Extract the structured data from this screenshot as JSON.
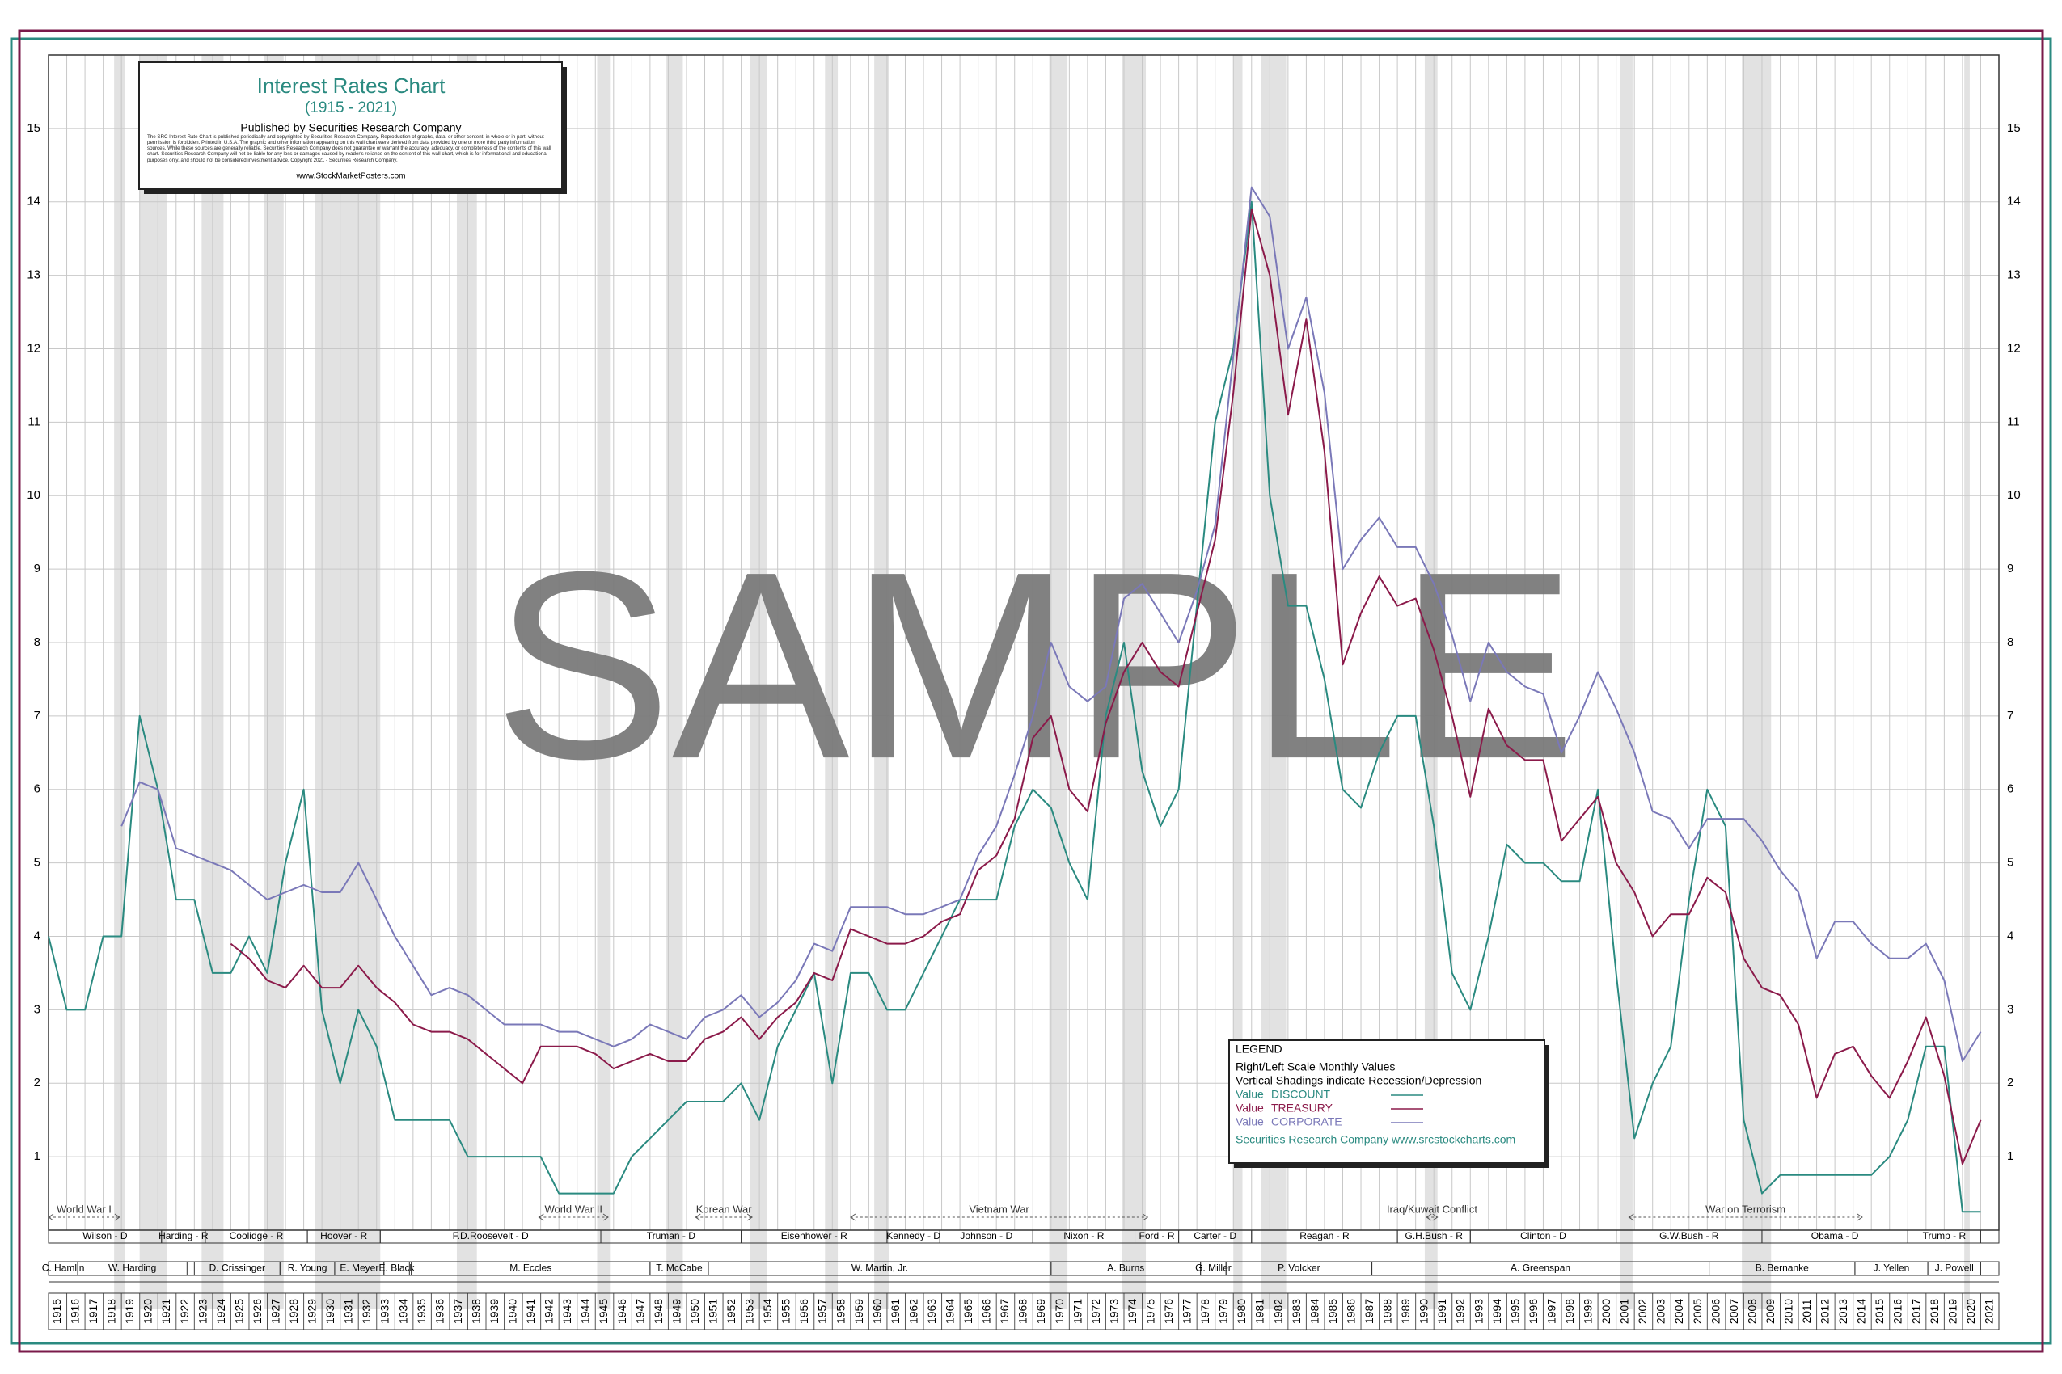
{
  "chart_data": {
    "type": "line",
    "title": "Interest Rates Chart",
    "subtitle": "(1915 - 2021)",
    "publisher": "Published by Securities Research Company",
    "disclaimer": "The SRC Interest Rate Chart is published periodically and copyrighted by Securities Research Company. Reproduction of graphs, data, or other content, in whole or in part, without permission is forbidden. Printed in U.S.A. The graphic and other information appearing on this wall chart were derived from data provided by one or more third party information sources. While these sources are generally reliable, Securities Research Company does not guarantee or warrant the accuracy, adequacy, or completeness of the contents of this wall chart. Securities Research Company will not be liable for any loss or damages caused by reader's reliance on the content of this wall chart, which is for informational and educational purposes only, and should not be considered investment advice. Copyright 2021 - Securities Research Company.",
    "website": "www.StockMarketPosters.com",
    "watermark": "SAMPLE",
    "x": [
      1915,
      1916,
      1917,
      1918,
      1919,
      1920,
      1921,
      1922,
      1923,
      1924,
      1925,
      1926,
      1927,
      1928,
      1929,
      1930,
      1931,
      1932,
      1933,
      1934,
      1935,
      1936,
      1937,
      1938,
      1939,
      1940,
      1941,
      1942,
      1943,
      1944,
      1945,
      1946,
      1947,
      1948,
      1949,
      1950,
      1951,
      1952,
      1953,
      1954,
      1955,
      1956,
      1957,
      1958,
      1959,
      1960,
      1961,
      1962,
      1963,
      1964,
      1965,
      1966,
      1967,
      1968,
      1969,
      1970,
      1971,
      1972,
      1973,
      1974,
      1975,
      1976,
      1977,
      1978,
      1979,
      1980,
      1981,
      1982,
      1983,
      1984,
      1985,
      1986,
      1987,
      1988,
      1989,
      1990,
      1991,
      1992,
      1993,
      1994,
      1995,
      1996,
      1997,
      1998,
      1999,
      2000,
      2001,
      2002,
      2003,
      2004,
      2005,
      2006,
      2007,
      2008,
      2009,
      2010,
      2011,
      2012,
      2013,
      2014,
      2015,
      2016,
      2017,
      2018,
      2019,
      2020,
      2021
    ],
    "xlim": [
      1915,
      2022
    ],
    "ylim": [
      0,
      16
    ],
    "yticks": [
      1,
      2,
      3,
      4,
      5,
      6,
      7,
      8,
      9,
      10,
      11,
      12,
      13,
      14,
      15
    ],
    "grid": true,
    "series": [
      {
        "name": "DISCOUNT",
        "color": "#2a8a80",
        "values": [
          4,
          3,
          3,
          4,
          4,
          7,
          6,
          4.5,
          4.5,
          3.5,
          3.5,
          4,
          3.5,
          5,
          6,
          3,
          2,
          3,
          2.5,
          1.5,
          1.5,
          1.5,
          1.5,
          1,
          1,
          1,
          1,
          1,
          0.5,
          0.5,
          0.5,
          0.5,
          1,
          1.25,
          1.5,
          1.75,
          1.75,
          1.75,
          2,
          1.5,
          2.5,
          3,
          3.5,
          2,
          3.5,
          3.5,
          3,
          3,
          3.5,
          4,
          4.5,
          4.5,
          4.5,
          5.5,
          6,
          5.75,
          5,
          4.5,
          7,
          8,
          6.25,
          5.5,
          6,
          8.5,
          11,
          12,
          14,
          10,
          8.5,
          8.5,
          7.5,
          6,
          5.75,
          6.5,
          7,
          7,
          5.5,
          3.5,
          3,
          4,
          5.25,
          5,
          5,
          4.75,
          4.75,
          6,
          3.5,
          1.25,
          2,
          2.5,
          4.5,
          6,
          5.5,
          1.5,
          0.5,
          0.75,
          0.75,
          0.75,
          0.75,
          0.75,
          0.75,
          1,
          1.5,
          2.5,
          2.5,
          0.25,
          0.25
        ]
      },
      {
        "name": "TREASURY",
        "color": "#8b1a4a",
        "values": [
          null,
          null,
          null,
          null,
          null,
          null,
          null,
          null,
          null,
          null,
          3.9,
          3.7,
          3.4,
          3.3,
          3.6,
          3.3,
          3.3,
          3.6,
          3.3,
          3.1,
          2.8,
          2.7,
          2.7,
          2.6,
          2.4,
          2.2,
          2.0,
          2.5,
          2.5,
          2.5,
          2.4,
          2.2,
          2.3,
          2.4,
          2.3,
          2.3,
          2.6,
          2.7,
          2.9,
          2.6,
          2.9,
          3.1,
          3.5,
          3.4,
          4.1,
          4.0,
          3.9,
          3.9,
          4.0,
          4.2,
          4.3,
          4.9,
          5.1,
          5.6,
          6.7,
          7.0,
          6.0,
          5.7,
          6.9,
          7.6,
          8.0,
          7.6,
          7.4,
          8.4,
          9.4,
          11.4,
          13.9,
          13.0,
          11.1,
          12.4,
          10.6,
          7.7,
          8.4,
          8.9,
          8.5,
          8.6,
          7.9,
          7.0,
          5.9,
          7.1,
          6.6,
          6.4,
          6.4,
          5.3,
          5.6,
          5.9,
          5.0,
          4.6,
          4.0,
          4.3,
          4.3,
          4.8,
          4.6,
          3.7,
          3.3,
          3.2,
          2.8,
          1.8,
          2.4,
          2.5,
          2.1,
          1.8,
          2.3,
          2.9,
          2.1,
          0.9,
          1.5
        ]
      },
      {
        "name": "CORPORATE",
        "color": "#7a78b8",
        "values": [
          null,
          null,
          null,
          null,
          5.5,
          6.1,
          6.0,
          5.2,
          5.1,
          5.0,
          4.9,
          4.7,
          4.5,
          4.6,
          4.7,
          4.6,
          4.6,
          5.0,
          4.5,
          4.0,
          3.6,
          3.2,
          3.3,
          3.2,
          3.0,
          2.8,
          2.8,
          2.8,
          2.7,
          2.7,
          2.6,
          2.5,
          2.6,
          2.8,
          2.7,
          2.6,
          2.9,
          3.0,
          3.2,
          2.9,
          3.1,
          3.4,
          3.9,
          3.8,
          4.4,
          4.4,
          4.4,
          4.3,
          4.3,
          4.4,
          4.5,
          5.1,
          5.5,
          6.2,
          7.0,
          8.0,
          7.4,
          7.2,
          7.4,
          8.6,
          8.8,
          8.4,
          8.0,
          8.7,
          9.6,
          11.9,
          14.2,
          13.8,
          12.0,
          12.7,
          11.4,
          9.0,
          9.4,
          9.7,
          9.3,
          9.3,
          8.8,
          8.1,
          7.2,
          8.0,
          7.6,
          7.4,
          7.3,
          6.5,
          7.0,
          7.6,
          7.1,
          6.5,
          5.7,
          5.6,
          5.2,
          5.6,
          5.6,
          5.6,
          5.3,
          4.9,
          4.6,
          3.7,
          4.2,
          4.2,
          3.9,
          3.7,
          3.7,
          3.9,
          3.4,
          2.3,
          2.7
        ]
      }
    ],
    "recessions": [
      [
        1918.6,
        1919.2
      ],
      [
        1920.0,
        1921.5
      ],
      [
        1923.4,
        1924.6
      ],
      [
        1926.8,
        1927.9
      ],
      [
        1929.6,
        1933.2
      ],
      [
        1937.4,
        1938.5
      ],
      [
        1945.1,
        1945.8
      ],
      [
        1948.9,
        1949.8
      ],
      [
        1953.5,
        1954.4
      ],
      [
        1957.6,
        1958.3
      ],
      [
        1960.3,
        1961.1
      ],
      [
        1969.9,
        1970.9
      ],
      [
        1973.9,
        1975.2
      ],
      [
        1980.0,
        1980.5
      ],
      [
        1981.5,
        1982.9
      ],
      [
        1990.5,
        1991.2
      ],
      [
        2001.2,
        2001.9
      ],
      [
        2007.9,
        2009.5
      ],
      [
        2020.1,
        2020.4
      ]
    ],
    "wars": [
      {
        "name": "World War I",
        "start": 1915,
        "end": 1918.9
      },
      {
        "name": "World War II",
        "start": 1941.9,
        "end": 1945.7
      },
      {
        "name": "Korean War",
        "start": 1950.5,
        "end": 1953.6
      },
      {
        "name": "Vietnam War",
        "start": 1959,
        "end": 1975.3
      },
      {
        "name": "Iraq/Kuwait Conflict",
        "start": 1990.6,
        "end": 1991.2
      },
      {
        "name": "War on Terrorism",
        "start": 2001.7,
        "end": 2014.5
      }
    ],
    "presidents": [
      {
        "name": "Wilson - D",
        "start": 1915,
        "end": 1921.2
      },
      {
        "name": "Harding - R",
        "start": 1921.2,
        "end": 1923.6
      },
      {
        "name": "Coolidge - R",
        "start": 1923.6,
        "end": 1929.2
      },
      {
        "name": "Hoover - R",
        "start": 1929.2,
        "end": 1933.2
      },
      {
        "name": "F.D.Roosevelt - D",
        "start": 1933.2,
        "end": 1945.3
      },
      {
        "name": "Truman - D",
        "start": 1945.3,
        "end": 1953
      },
      {
        "name": "Eisenhower - R",
        "start": 1953,
        "end": 1961
      },
      {
        "name": "Kennedy - D",
        "start": 1961,
        "end": 1963.9
      },
      {
        "name": "Johnson - D",
        "start": 1963.9,
        "end": 1969
      },
      {
        "name": "Nixon - R",
        "start": 1969,
        "end": 1974.6
      },
      {
        "name": "Ford - R",
        "start": 1974.6,
        "end": 1977
      },
      {
        "name": "Carter - D",
        "start": 1977,
        "end": 1981
      },
      {
        "name": "Reagan - R",
        "start": 1981,
        "end": 1989
      },
      {
        "name": "G.H.Bush - R",
        "start": 1989,
        "end": 1993
      },
      {
        "name": "Clinton - D",
        "start": 1993,
        "end": 2001
      },
      {
        "name": "G.W.Bush - R",
        "start": 2001,
        "end": 2009
      },
      {
        "name": "Obama - D",
        "start": 2009,
        "end": 2017
      },
      {
        "name": "Trump - R",
        "start": 2017,
        "end": 2021
      }
    ],
    "fed_chairs": [
      {
        "name": "C. Hamlin",
        "start": 1915,
        "end": 1916.6
      },
      {
        "name": "W. Harding",
        "start": 1916.6,
        "end": 1922.6
      },
      {
        "name": "D. Crissinger",
        "start": 1923,
        "end": 1927.7
      },
      {
        "name": "R. Young",
        "start": 1927.7,
        "end": 1930.7
      },
      {
        "name": "E. Meyer",
        "start": 1930.7,
        "end": 1933.4
      },
      {
        "name": "E. Black",
        "start": 1933.4,
        "end": 1934.8
      },
      {
        "name": "M. Eccles",
        "start": 1934.9,
        "end": 1948
      },
      {
        "name": "T. McCabe",
        "start": 1948,
        "end": 1951.2
      },
      {
        "name": "W. Martin, Jr.",
        "start": 1951.2,
        "end": 1970
      },
      {
        "name": "A. Burns",
        "start": 1970,
        "end": 1978.2
      },
      {
        "name": "G. Miller",
        "start": 1978.2,
        "end": 1979.6
      },
      {
        "name": "P. Volcker",
        "start": 1979.6,
        "end": 1987.6
      },
      {
        "name": "A. Greenspan",
        "start": 1987.6,
        "end": 2006.1
      },
      {
        "name": "B. Bernanke",
        "start": 2006.1,
        "end": 2014.1
      },
      {
        "name": "J. Yellen",
        "start": 2014.1,
        "end": 2018.1
      },
      {
        "name": "J. Powell",
        "start": 2018.1,
        "end": 2021
      }
    ],
    "legend_position": "lower-right",
    "legend": {
      "title": "LEGEND",
      "lines": [
        "Right/Left Scale Monthly Values",
        "Vertical Shadings indicate Recession/Depression"
      ],
      "prefix": "Value",
      "footer": "Securities Research Company  www.srcstockcharts.com"
    }
  }
}
